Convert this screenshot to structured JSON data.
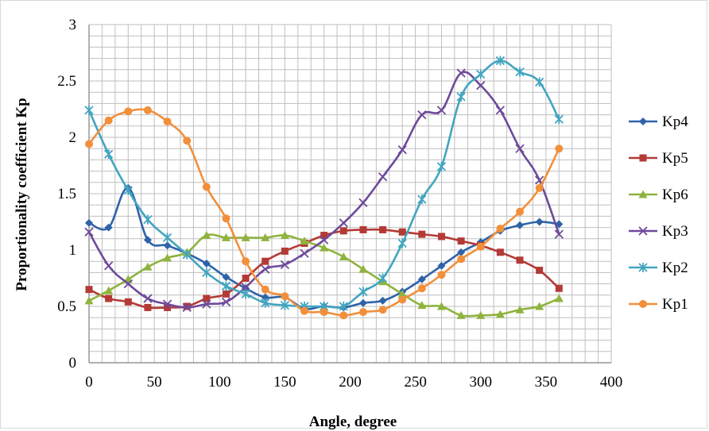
{
  "chart_data": {
    "type": "line",
    "title": "",
    "xlabel": "Angle, degree",
    "ylabel": "Proportionality coefficient Kp",
    "xlim": [
      0,
      400
    ],
    "ylim": [
      0,
      3
    ],
    "x_ticks": [
      "0",
      "50",
      "100",
      "150",
      "200",
      "250",
      "300",
      "350",
      "400"
    ],
    "y_ticks": [
      "0",
      "0.5",
      "1",
      "1.5",
      "2",
      "2.5",
      "3"
    ],
    "grid": true,
    "legend_position": "right",
    "x": [
      0,
      15,
      30,
      45,
      60,
      75,
      90,
      105,
      120,
      135,
      150,
      165,
      180,
      195,
      210,
      225,
      240,
      255,
      270,
      285,
      300,
      315,
      330,
      345,
      360
    ],
    "series": [
      {
        "name": "Kp4",
        "color": "#2e63a8",
        "marker": "diamond",
        "values": [
          1.24,
          1.2,
          1.55,
          1.09,
          1.04,
          0.97,
          0.88,
          0.76,
          0.66,
          0.58,
          0.58,
          0.48,
          0.5,
          0.49,
          0.53,
          0.55,
          0.63,
          0.74,
          0.86,
          0.98,
          1.07,
          1.17,
          1.22,
          1.25,
          1.23
        ]
      },
      {
        "name": "Kp5",
        "color": "#b43a36",
        "marker": "square",
        "values": [
          0.65,
          0.57,
          0.54,
          0.49,
          0.49,
          0.5,
          0.57,
          0.61,
          0.75,
          0.9,
          0.99,
          1.06,
          1.13,
          1.17,
          1.18,
          1.18,
          1.16,
          1.14,
          1.12,
          1.08,
          1.04,
          0.98,
          0.91,
          0.82,
          0.66
        ]
      },
      {
        "name": "Kp6",
        "color": "#8fb33e",
        "marker": "triangle",
        "values": [
          0.55,
          0.64,
          0.74,
          0.85,
          0.93,
          0.98,
          1.13,
          1.11,
          1.11,
          1.11,
          1.13,
          1.08,
          1.02,
          0.94,
          0.83,
          0.72,
          0.61,
          0.51,
          0.5,
          0.42,
          0.42,
          0.43,
          0.47,
          0.5,
          0.57
        ]
      },
      {
        "name": "Kp3",
        "color": "#6e4a9a",
        "marker": "x",
        "values": [
          1.16,
          0.86,
          0.7,
          0.57,
          0.52,
          0.49,
          0.52,
          0.54,
          0.67,
          0.83,
          0.87,
          0.97,
          1.09,
          1.24,
          1.42,
          1.65,
          1.89,
          2.2,
          2.24,
          2.57,
          2.46,
          2.24,
          1.9,
          1.62,
          1.14
        ]
      },
      {
        "name": "Kp2",
        "color": "#42a5c0",
        "marker": "star",
        "values": [
          2.24,
          1.85,
          1.53,
          1.27,
          1.11,
          0.96,
          0.8,
          0.68,
          0.61,
          0.53,
          0.51,
          0.5,
          0.5,
          0.5,
          0.63,
          0.75,
          1.06,
          1.45,
          1.74,
          2.36,
          2.56,
          2.68,
          2.58,
          2.49,
          2.16
        ]
      },
      {
        "name": "Kp1",
        "color": "#f28f3b",
        "marker": "circle",
        "values": [
          1.94,
          2.15,
          2.23,
          2.24,
          2.14,
          1.97,
          1.56,
          1.28,
          0.9,
          0.65,
          0.59,
          0.46,
          0.45,
          0.42,
          0.45,
          0.47,
          0.56,
          0.66,
          0.78,
          0.92,
          1.03,
          1.19,
          1.34,
          1.55,
          1.9
        ]
      }
    ]
  }
}
